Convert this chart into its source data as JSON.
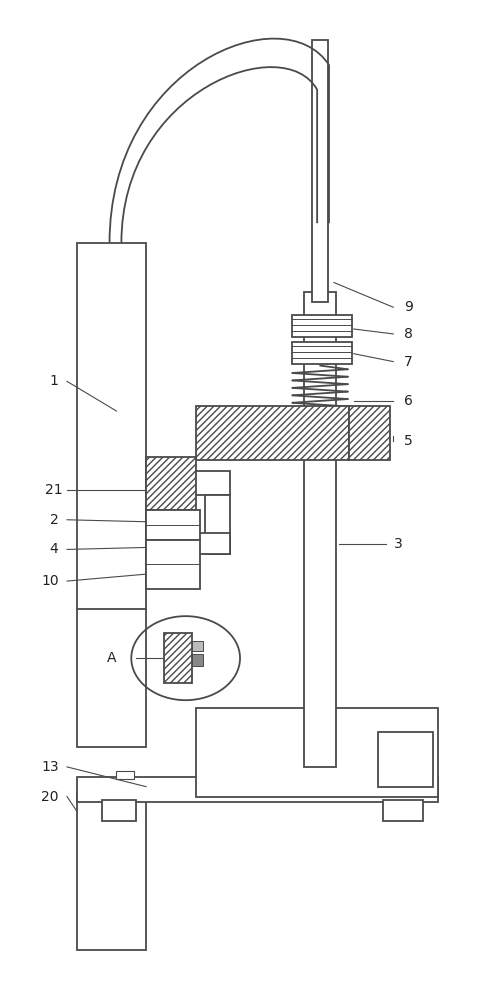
{
  "bg_color": "#ffffff",
  "lc": "#4a4a4a",
  "lw": 1.3,
  "fig_width": 4.85,
  "fig_height": 10.0,
  "label_fs": 10,
  "label_color": "#222222"
}
